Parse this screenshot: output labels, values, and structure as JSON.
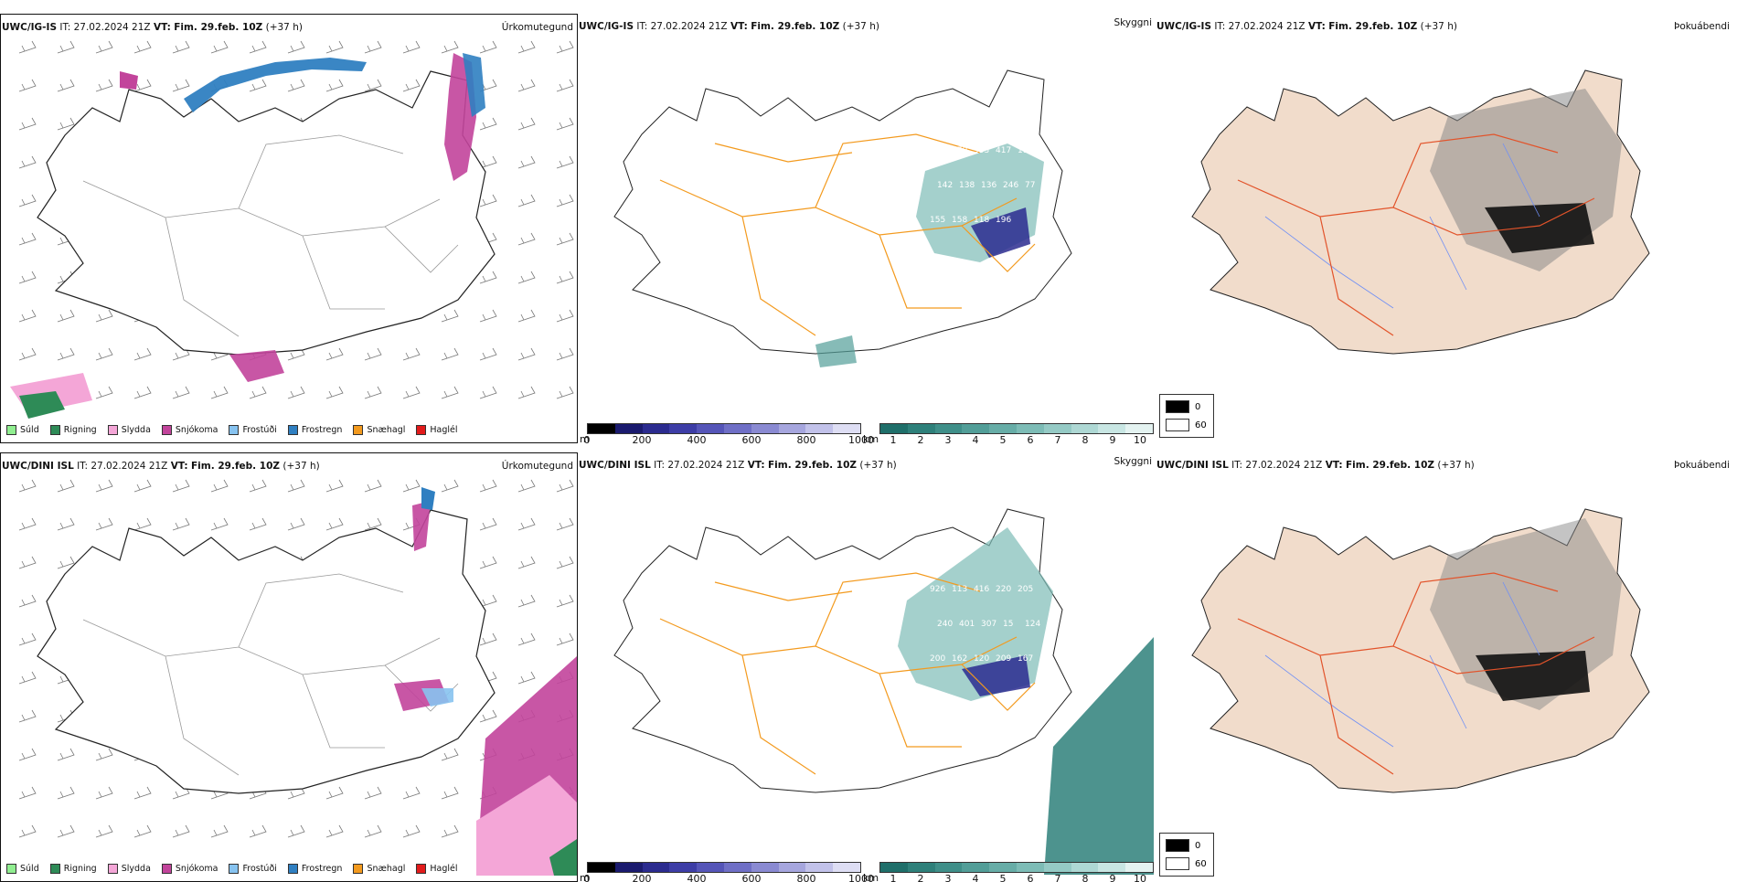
{
  "panels": [
    {
      "header_model": "UWC/IG-IS",
      "header_it": "IT: 27.02.2024 21Z",
      "header_vt_label": "VT:",
      "header_vt": "Fim. 29.feb. 10Z",
      "header_lead": "(+37 h)",
      "tag": "Úrkomutegund"
    },
    {
      "header_model": "UWC/IG-IS",
      "header_it": "IT: 27.02.2024 21Z",
      "header_vt_label": "VT:",
      "header_vt": "Fim. 29.feb. 10Z",
      "header_lead": "(+37 h)",
      "tag": "Skyggni"
    },
    {
      "header_model": "UWC/IG-IS",
      "header_it": "IT: 27.02.2024 21Z",
      "header_vt_label": "VT:",
      "header_vt": "Fim. 29.feb. 10Z",
      "header_lead": "(+37 h)",
      "tag": "Þokuábendi"
    },
    {
      "header_model": "UWC/DINI ISL",
      "header_it": "IT: 27.02.2024 21Z",
      "header_vt_label": "VT:",
      "header_vt": "Fim. 29.feb. 10Z",
      "header_lead": "(+37 h)",
      "tag": "Úrkomutegund"
    },
    {
      "header_model": "UWC/DINI ISL",
      "header_it": "IT: 27.02.2024 21Z",
      "header_vt_label": "VT:",
      "header_vt": "Fim. 29.feb. 10Z",
      "header_lead": "(+37 h)",
      "tag": "Skyggni"
    },
    {
      "header_model": "UWC/DINI ISL",
      "header_it": "IT: 27.02.2024 21Z",
      "header_vt_label": "VT:",
      "header_vt": "Fim. 29.feb. 10Z",
      "header_lead": "(+37 h)",
      "tag": "Þokuábendi"
    }
  ],
  "precip_legend": [
    {
      "label": "Súld",
      "color": "#90ee90"
    },
    {
      "label": "Rigning",
      "color": "#2e8b57"
    },
    {
      "label": "Slydda",
      "color": "#f4a6d7"
    },
    {
      "label": "Snjókoma",
      "color": "#c2449b"
    },
    {
      "label": "Frostúði",
      "color": "#87c3f0"
    },
    {
      "label": "Frostregn",
      "color": "#2f7fc1"
    },
    {
      "label": "Snæhagl",
      "color": "#f39a1e"
    },
    {
      "label": "Haglél",
      "color": "#e21b1b"
    }
  ],
  "visibility_scale": {
    "m_unit": "m",
    "m_ticks": [
      "0",
      "200",
      "400",
      "600",
      "800",
      "1000"
    ],
    "m_colors": [
      "#000000",
      "#1a1a6e",
      "#2b2b8f",
      "#3d3da6",
      "#5555b8",
      "#6f6fc6",
      "#8a8ad2",
      "#a6a6de",
      "#c2c2ea",
      "#dedef4"
    ],
    "km_unit": "km",
    "km_ticks": [
      "1",
      "2",
      "3",
      "4",
      "5",
      "6",
      "7",
      "8",
      "9",
      "10"
    ],
    "km_colors": [
      "#1f6f6a",
      "#2e807a",
      "#3f8f89",
      "#529e98",
      "#67ada7",
      "#7dbcb6",
      "#95cac5",
      "#aed8d4",
      "#c8e6e3",
      "#e4f3f1"
    ]
  },
  "fog_scale": {
    "low_label": "0",
    "high_label": "60",
    "low_color": "#000000",
    "high_color": "#ffffff"
  },
  "visibility_values_top": [
    "462",
    "670",
    "553",
    "417",
    "110",
    "142",
    "138",
    "136",
    "246",
    "77",
    "155",
    "158",
    "118",
    "196"
  ],
  "visibility_values_bottom": [
    "926",
    "113",
    "416",
    "220",
    "205",
    "240",
    "401",
    "307",
    "15",
    "124",
    "200",
    "162",
    "120",
    "209",
    "167"
  ]
}
